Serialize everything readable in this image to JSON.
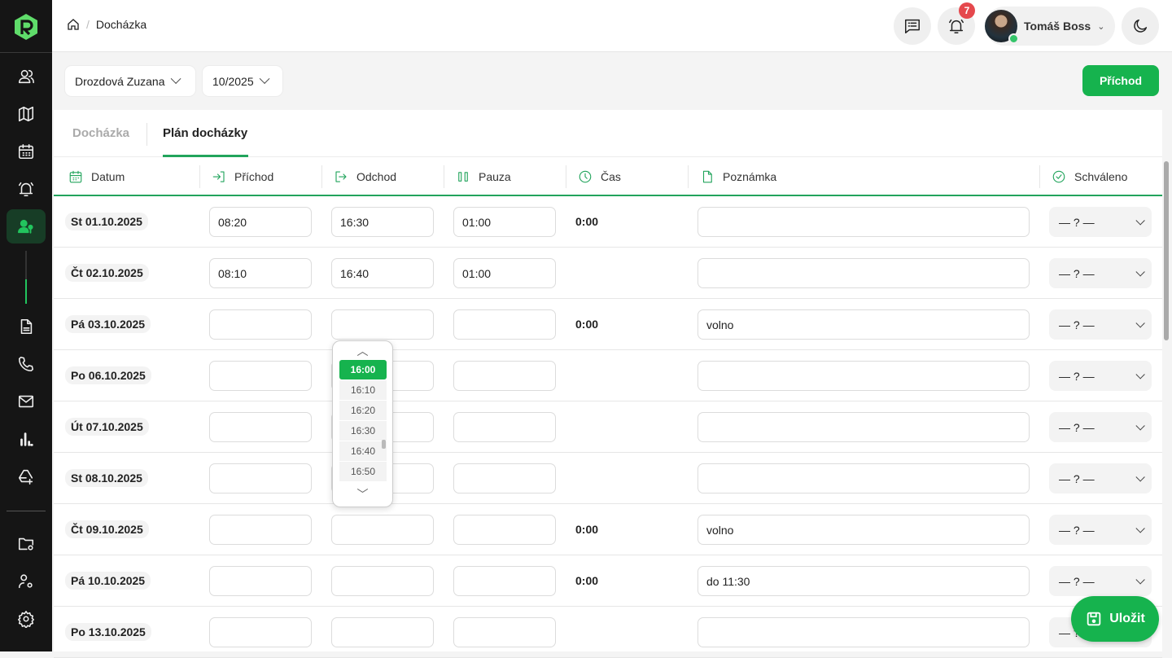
{
  "breadcrumb": {
    "current": "Docházka"
  },
  "header": {
    "notifications_count": "7",
    "user_name": "Tomáš Boss"
  },
  "filters": {
    "employee": "Drozdová Zuzana",
    "month": "10/2025",
    "arrival_button": "Příchod"
  },
  "tabs": [
    {
      "label": "Docházka"
    },
    {
      "label": "Plán docházky"
    }
  ],
  "columns": {
    "date": "Datum",
    "arrival": "Příchod",
    "departure": "Odchod",
    "pause": "Pauza",
    "time": "Čas",
    "note": "Poznámka",
    "approved": "Schváleno"
  },
  "rows": [
    {
      "date": "St 01.10.2025",
      "arrival": "08:20",
      "departure": "16:30",
      "pause": "01:00",
      "time": "0:00",
      "note": "",
      "approved": "— ? —"
    },
    {
      "date": "Čt 02.10.2025",
      "arrival": "08:10",
      "departure": "16:40",
      "pause": "01:00",
      "time": "",
      "note": "",
      "approved": "— ? —"
    },
    {
      "date": "Pá 03.10.2025",
      "arrival": "",
      "departure": "",
      "pause": "",
      "time": "0:00",
      "note": "volno",
      "approved": "— ? —"
    },
    {
      "date": "Po 06.10.2025",
      "arrival": "",
      "departure": "",
      "pause": "",
      "time": "",
      "note": "",
      "approved": "— ? —"
    },
    {
      "date": "Út 07.10.2025",
      "arrival": "",
      "departure": "",
      "pause": "",
      "time": "",
      "note": "",
      "approved": "— ? —"
    },
    {
      "date": "St 08.10.2025",
      "arrival": "",
      "departure": "",
      "pause": "",
      "time": "",
      "note": "",
      "approved": "— ? —"
    },
    {
      "date": "Čt 09.10.2025",
      "arrival": "",
      "departure": "",
      "pause": "",
      "time": "0:00",
      "note": "volno",
      "approved": "— ? —"
    },
    {
      "date": "Pá 10.10.2025",
      "arrival": "",
      "departure": "",
      "pause": "",
      "time": "0:00",
      "note": "do 11:30",
      "approved": "— ? —"
    },
    {
      "date": "Po 13.10.2025",
      "arrival": "",
      "departure": "",
      "pause": "",
      "time": "",
      "note": "",
      "approved": "— ? —"
    }
  ],
  "time_picker": {
    "selected": "16:00",
    "options": [
      "16:00",
      "16:10",
      "16:20",
      "16:30",
      "16:40",
      "16:50"
    ]
  },
  "save_button": "Uložit",
  "colors": {
    "accent": "#16b34e",
    "sidebar": "#151515",
    "badge": "#e5484d"
  }
}
